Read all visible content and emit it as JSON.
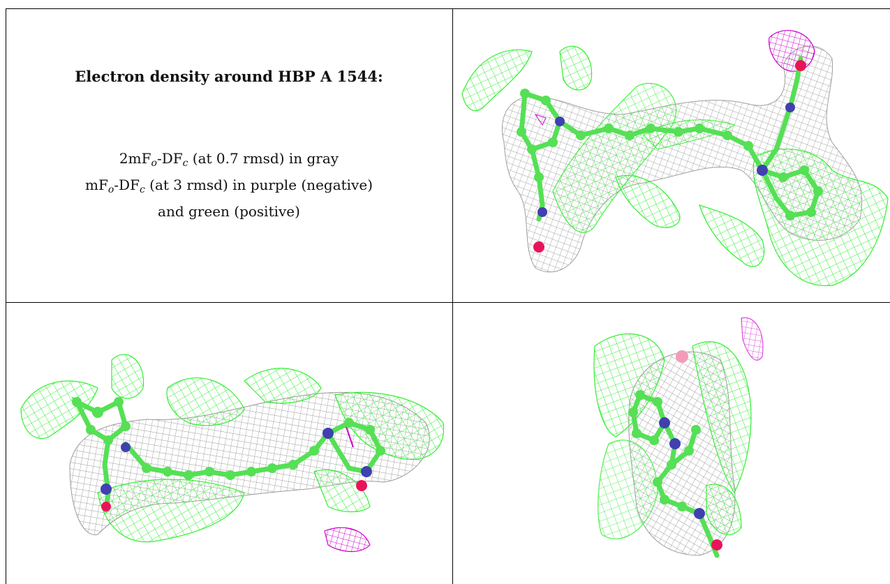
{
  "caption": {
    "title": "Electron density around HBP A 1544:",
    "line1_prefix": "2mF",
    "line1_sub1": "o",
    "line1_mid": "-DF",
    "line1_sub2": "c",
    "line1_suffix": " (at 0.7 rmsd) in gray",
    "line2_prefix": "mF",
    "line2_sub1": "o",
    "line2_mid": "-DF",
    "line2_sub2": "c",
    "line2_suffix": " (at 3 rmsd) in purple (negative)",
    "line3": "and green (positive)"
  },
  "colors": {
    "gray_density": "#9a9a9a",
    "negative_density": "#cc00cc",
    "positive_density": "#33ee33",
    "carbon_atom": "#55e055",
    "nitrogen_atom": "#4040b0",
    "oxygen_atom": "#e8145a",
    "grid_lines": "#000000"
  }
}
